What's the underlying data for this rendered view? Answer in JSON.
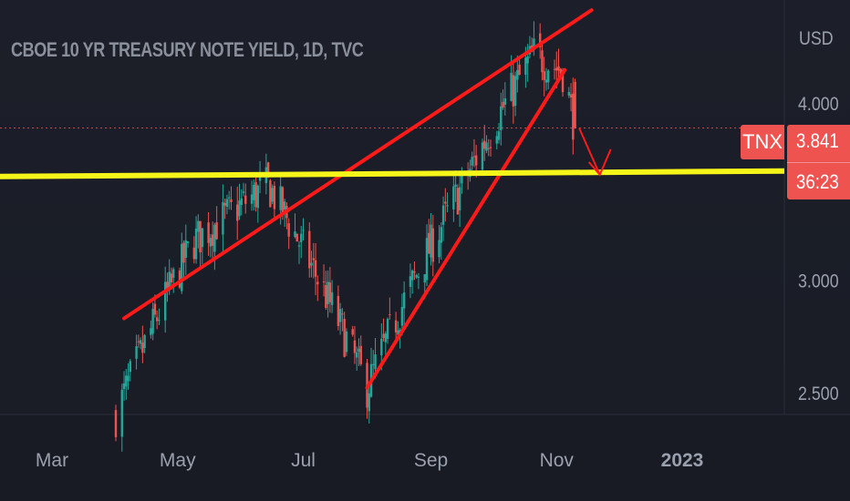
{
  "header": {
    "title": "CBOE 10 YR TREASURY NOTE YIELD, 1D, TVC",
    "currency": "USD"
  },
  "price_label": {
    "ticker": "TNX",
    "price": "3.841",
    "countdown": "36:23",
    "color": "#ef5350"
  },
  "colors": {
    "background": "#1c1f29",
    "up": "#26a69a",
    "down": "#ef5350",
    "trendline": "#ff1a1a",
    "support": "#f5f51a",
    "axis_text": "#9aa0ad"
  },
  "chart_data": {
    "type": "candlestick",
    "title": "CBOE 10 YR TREASURY NOTE YIELD, 1D, TVC",
    "ylabel": "USD",
    "ylim": [
      2.3,
      4.75
    ],
    "y_scale": "log",
    "y_ticks": [
      "2.500",
      "3.000",
      "4.000"
    ],
    "x_ticks": [
      "Mar",
      "May",
      "Jul",
      "Sep",
      "Nov",
      "2023"
    ],
    "last_price": 3.841,
    "support_level": 3.55,
    "key_points": [
      {
        "date": "2022-04-01",
        "value": 2.41
      },
      {
        "date": "2022-05-09",
        "value": 3.2
      },
      {
        "date": "2022-06-14",
        "value": 3.5
      },
      {
        "date": "2022-08-01",
        "value": 2.52
      },
      {
        "date": "2022-09-15",
        "value": 3.47
      },
      {
        "date": "2022-10-21",
        "value": 4.33
      },
      {
        "date": "2022-11-04",
        "value": 4.21
      },
      {
        "date": "2022-11-10",
        "value": 3.84
      }
    ],
    "annotations": [
      {
        "type": "trendline",
        "color": "red",
        "from": {
          "date": "2022-04-05",
          "value": 2.82
        },
        "to": {
          "date": "2022-11-18",
          "value": 4.65
        }
      },
      {
        "type": "trendline",
        "color": "red",
        "from": {
          "date": "2022-08-01",
          "value": 2.52
        },
        "to": {
          "date": "2022-11-05",
          "value": 4.22
        }
      },
      {
        "type": "horizontal_line",
        "color": "yellow",
        "value": 3.55
      },
      {
        "type": "arrow",
        "color": "red",
        "from": {
          "date": "2022-11-12",
          "value": 3.84
        },
        "to": {
          "date": "2022-11-22",
          "value": 3.56
        }
      }
    ]
  }
}
